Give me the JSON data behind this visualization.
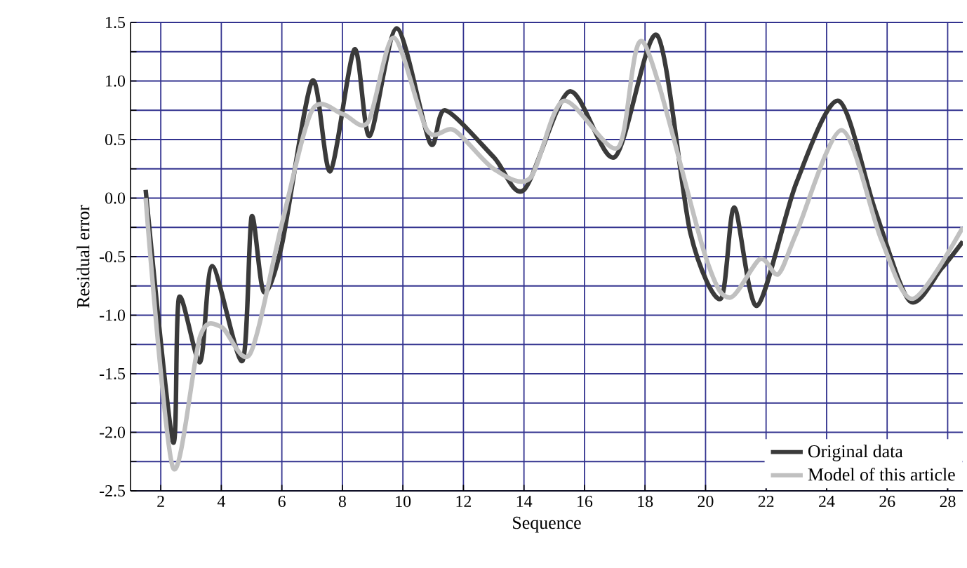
{
  "chart_data": {
    "type": "line",
    "xlabel": "Sequence",
    "ylabel": "Residual error",
    "xlim": [
      1,
      28.5
    ],
    "ylim": [
      -2.5,
      1.5
    ],
    "xticks": [
      2,
      4,
      6,
      8,
      10,
      12,
      14,
      16,
      18,
      20,
      22,
      24,
      26,
      28
    ],
    "yticks": [
      {
        "value": -2.5,
        "label": "-2.5"
      },
      {
        "value": -2.25,
        "label": null
      },
      {
        "value": -2,
        "label": "-2.0"
      },
      {
        "value": -1.75,
        "label": null
      },
      {
        "value": -1.5,
        "label": "-1.5"
      },
      {
        "value": -1.25,
        "label": null
      },
      {
        "value": -1,
        "label": "-1.0"
      },
      {
        "value": -0.75,
        "label": null
      },
      {
        "value": -0.5,
        "label": "-0.5"
      },
      {
        "value": -0.25,
        "label": null
      },
      {
        "value": 0,
        "label": "0.0"
      },
      {
        "value": 0.25,
        "label": null
      },
      {
        "value": 0.5,
        "label": "0.5"
      },
      {
        "value": 0.75,
        "label": null
      },
      {
        "value": 1,
        "label": "1.0"
      },
      {
        "value": 1.25,
        "label": null
      },
      {
        "value": 1.5,
        "label": "1.5"
      }
    ],
    "grid": true,
    "legend": "bottom right",
    "line_style": "solid",
    "marker": "none",
    "series": [
      {
        "name": "Original data",
        "color": "#3a3a3a",
        "x": [
          1.5,
          2.4,
          2.6,
          3.3,
          3.7,
          4.7,
          5.0,
          5.4,
          6.0,
          7.0,
          7.6,
          8.4,
          8.9,
          9.8,
          10.9,
          11.4,
          13.0,
          14.0,
          15.5,
          17.0,
          18.4,
          19.5,
          20.5,
          20.95,
          21.7,
          23.0,
          24.4,
          25.6,
          26.75,
          27.8,
          28.5
        ],
        "values": [
          0.07,
          -2.08,
          -0.85,
          -1.4,
          -0.58,
          -1.39,
          -0.16,
          -0.8,
          -0.4,
          1.0,
          0.23,
          1.27,
          0.53,
          1.45,
          0.47,
          0.75,
          0.35,
          0.07,
          0.91,
          0.35,
          1.39,
          -0.3,
          -0.86,
          -0.08,
          -0.92,
          0.13,
          0.83,
          -0.1,
          -0.88,
          -0.6,
          -0.37
        ]
      },
      {
        "name": "Model of  this article",
        "color": "#c0c0c0",
        "x": [
          1.5,
          2.4,
          3.3,
          4.0,
          4.95,
          6.0,
          7.0,
          8.0,
          8.85,
          9.7,
          10.8,
          11.7,
          13.0,
          14.2,
          15.3,
          17.1,
          17.95,
          20.0,
          20.8,
          21.8,
          22.4,
          23.0,
          24.5,
          25.8,
          26.85,
          28.5
        ],
        "values": [
          0.0,
          -2.3,
          -1.18,
          -1.1,
          -1.33,
          -0.22,
          0.75,
          0.72,
          0.65,
          1.37,
          0.58,
          0.58,
          0.25,
          0.17,
          0.83,
          0.43,
          1.33,
          -0.5,
          -0.85,
          -0.52,
          -0.65,
          -0.3,
          0.58,
          -0.35,
          -0.86,
          -0.25
        ]
      }
    ]
  }
}
